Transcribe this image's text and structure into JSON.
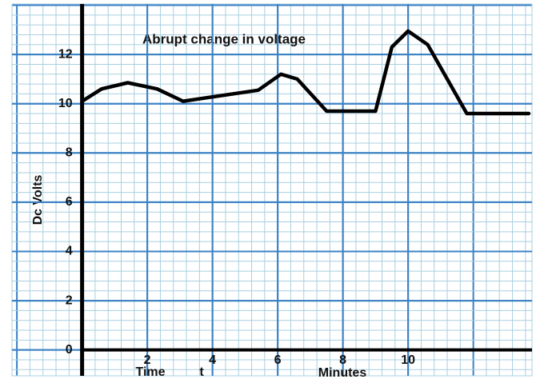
{
  "chart_data": {
    "type": "line",
    "title": "Abrupt change in voltage",
    "y_label": "Dc Volts",
    "annotations": [
      "Time",
      "t",
      "Minutes"
    ],
    "x": [
      0,
      0.6,
      1.4,
      2.3,
      3.1,
      5.4,
      6.1,
      6.6,
      7.5,
      9.0,
      9.5,
      10.0,
      10.6,
      11.8,
      13.7
    ],
    "series": [
      {
        "color": "#000000",
        "values": [
          10.1,
          10.6,
          10.85,
          10.6,
          10.1,
          10.55,
          11.2,
          11.0,
          9.7,
          9.7,
          12.3,
          12.95,
          12.4,
          9.6,
          9.6
        ]
      }
    ],
    "xlim": [
      -2.15,
      13.8
    ],
    "ylim": [
      -1.05,
      14.05
    ],
    "xticks": [
      2,
      4,
      6,
      8,
      10
    ],
    "yticks": [
      0,
      2,
      4,
      6,
      8,
      10,
      12
    ],
    "grid": true
  }
}
